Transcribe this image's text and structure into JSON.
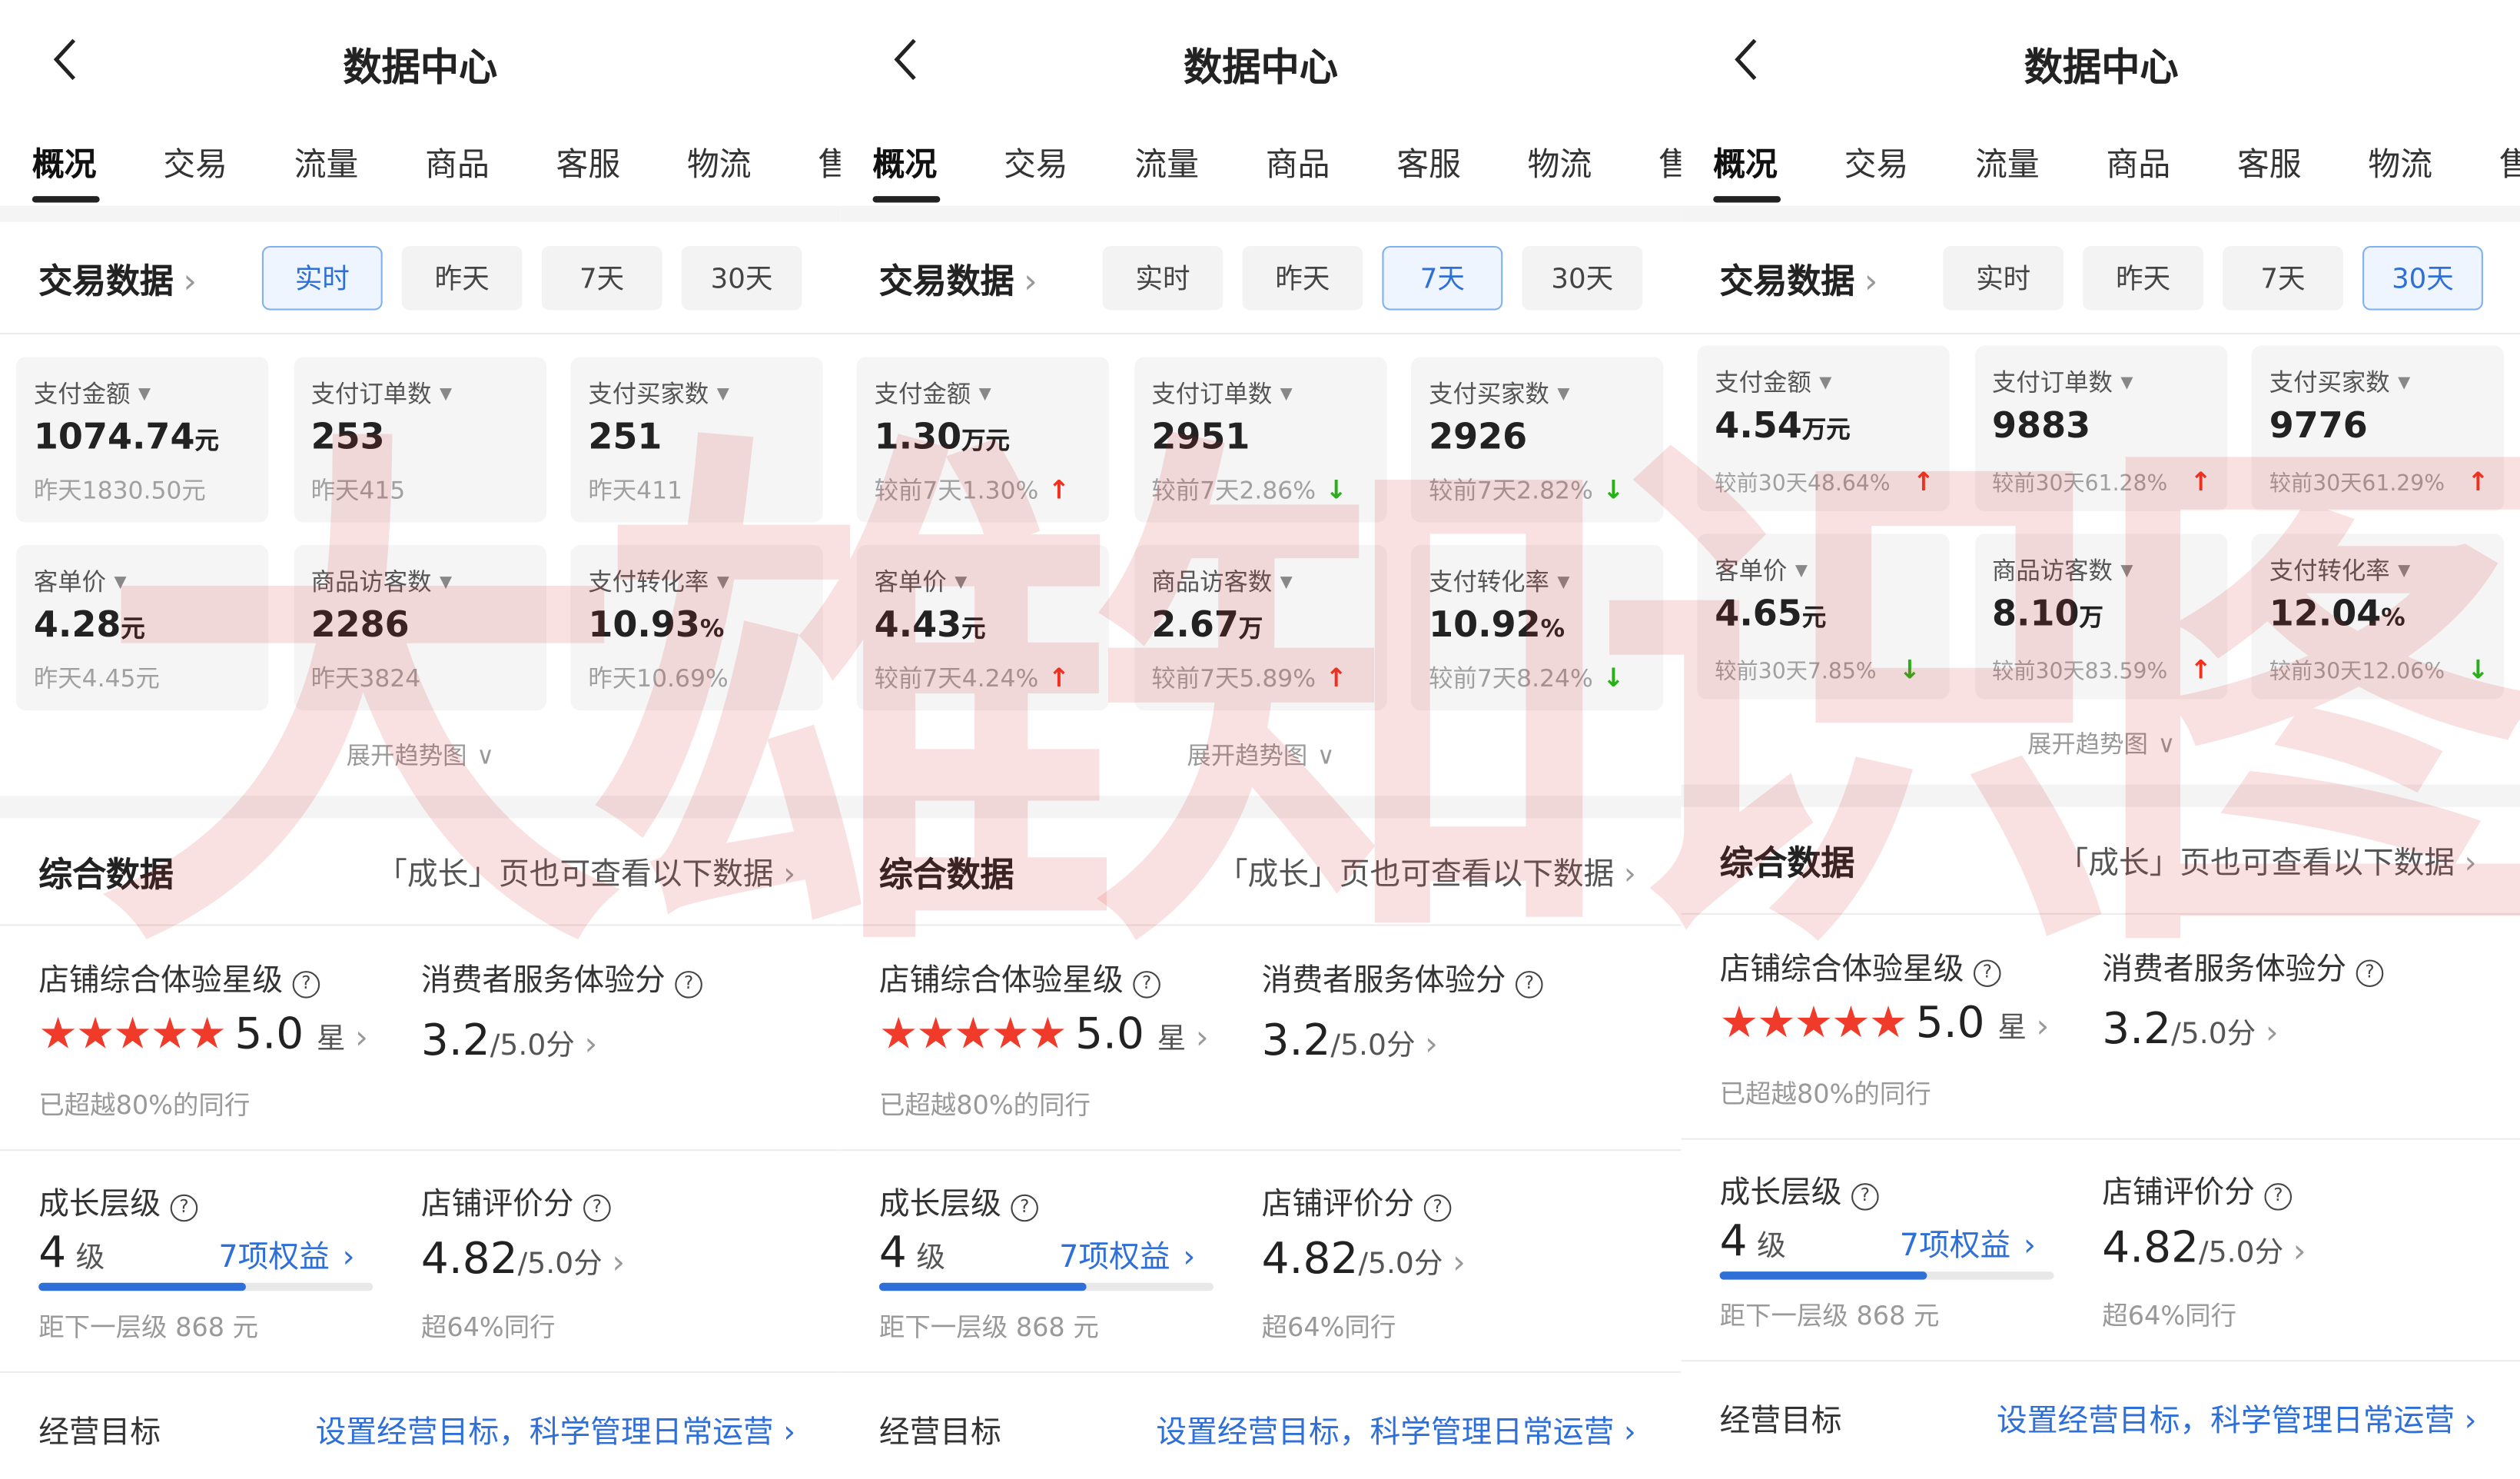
{
  "header": {
    "title": "数据中心"
  },
  "tabs": [
    "概况",
    "交易",
    "流量",
    "商品",
    "客服",
    "物流",
    "售"
  ],
  "trade": {
    "title": "交易数据",
    "ranges": [
      "实时",
      "昨天",
      "7天",
      "30天"
    ]
  },
  "expand_label": "展开趋势图",
  "summary": {
    "title": "综合数据",
    "hint": "「成长」页也可查看以下数据",
    "star_label": "店铺综合体验星级",
    "star_value": "5.0",
    "star_unit": "星",
    "star_count": 5,
    "star_note": "已超越80%的同行",
    "service_label": "消费者服务体验分",
    "service_value": "3.2",
    "service_max": "/5.0分",
    "growth_label": "成长层级",
    "growth_level": "4",
    "growth_unit": "级",
    "growth_benefits": "7项权益",
    "growth_progress_pct": 62,
    "growth_note": "距下一层级 868 元",
    "review_label": "店铺评价分",
    "review_value": "4.82",
    "review_max": "/5.0分",
    "review_note": "超64%同行",
    "goal_label": "经营目标",
    "goal_link": "设置经营目标，科学管理日常运营"
  },
  "watermark": "大雄知识图",
  "colors": {
    "accent": "#2f6fd8",
    "up": "#f0311e",
    "down": "#29b019",
    "star": "#f03a2a"
  },
  "panels": [
    {
      "selected_range": "实时",
      "metrics": [
        {
          "label": "支付金额",
          "value": "1074.74",
          "unit": "元",
          "compare": "昨天1830.50元",
          "trend": ""
        },
        {
          "label": "支付订单数",
          "value": "253",
          "unit": "",
          "compare": "昨天415",
          "trend": ""
        },
        {
          "label": "支付买家数",
          "value": "251",
          "unit": "",
          "compare": "昨天411",
          "trend": ""
        },
        {
          "label": "客单价",
          "value": "4.28",
          "unit": "元",
          "compare": "昨天4.45元",
          "trend": ""
        },
        {
          "label": "商品访客数",
          "value": "2286",
          "unit": "",
          "compare": "昨天3824",
          "trend": ""
        },
        {
          "label": "支付转化率",
          "value": "10.93",
          "unit": "%",
          "compare": "昨天10.69%",
          "trend": ""
        }
      ]
    },
    {
      "selected_range": "7天",
      "metrics": [
        {
          "label": "支付金额",
          "value": "1.30",
          "unit": "万元",
          "compare": "较前7天1.30%",
          "trend": "up"
        },
        {
          "label": "支付订单数",
          "value": "2951",
          "unit": "",
          "compare": "较前7天2.86%",
          "trend": "down"
        },
        {
          "label": "支付买家数",
          "value": "2926",
          "unit": "",
          "compare": "较前7天2.82%",
          "trend": "down"
        },
        {
          "label": "客单价",
          "value": "4.43",
          "unit": "元",
          "compare": "较前7天4.24%",
          "trend": "up"
        },
        {
          "label": "商品访客数",
          "value": "2.67",
          "unit": "万",
          "compare": "较前7天5.89%",
          "trend": "up"
        },
        {
          "label": "支付转化率",
          "value": "10.92",
          "unit": "%",
          "compare": "较前7天8.24%",
          "trend": "down"
        }
      ]
    },
    {
      "selected_range": "30天",
      "metrics": [
        {
          "label": "支付金额",
          "value": "4.54",
          "unit": "万元",
          "compare": "较前30天48.64%",
          "trend": "up"
        },
        {
          "label": "支付订单数",
          "value": "9883",
          "unit": "",
          "compare": "较前30天61.28%",
          "trend": "up"
        },
        {
          "label": "支付买家数",
          "value": "9776",
          "unit": "",
          "compare": "较前30天61.29%",
          "trend": "up"
        },
        {
          "label": "客单价",
          "value": "4.65",
          "unit": "元",
          "compare": "较前30天7.85%",
          "trend": "down"
        },
        {
          "label": "商品访客数",
          "value": "8.10",
          "unit": "万",
          "compare": "较前30天83.59%",
          "trend": "up"
        },
        {
          "label": "支付转化率",
          "value": "12.04",
          "unit": "%",
          "compare": "较前30天12.06%",
          "trend": "down"
        }
      ]
    }
  ]
}
